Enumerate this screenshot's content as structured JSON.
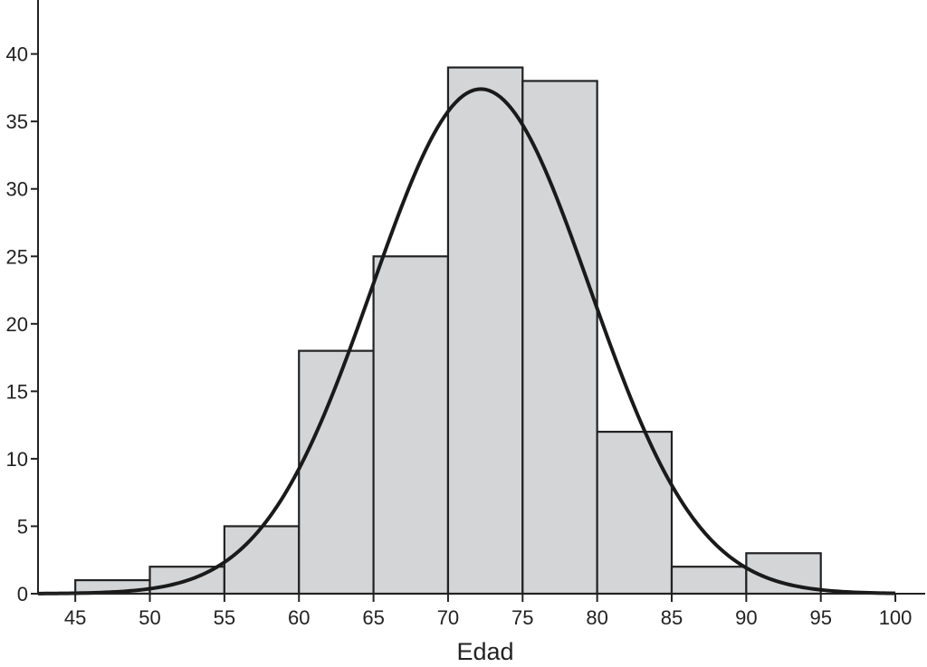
{
  "chart_data": {
    "type": "bar",
    "subtype": "histogram",
    "title": "",
    "xlabel": "Edad",
    "ylabel": "",
    "bins": [
      {
        "start": 45,
        "end": 50,
        "value": 1
      },
      {
        "start": 50,
        "end": 55,
        "value": 2
      },
      {
        "start": 55,
        "end": 60,
        "value": 5
      },
      {
        "start": 60,
        "end": 65,
        "value": 18
      },
      {
        "start": 65,
        "end": 70,
        "value": 25
      },
      {
        "start": 70,
        "end": 75,
        "value": 39
      },
      {
        "start": 75,
        "end": 80,
        "value": 38
      },
      {
        "start": 80,
        "end": 85,
        "value": 12
      },
      {
        "start": 85,
        "end": 90,
        "value": 2
      },
      {
        "start": 90,
        "end": 95,
        "value": 3
      }
    ],
    "xticks": [
      45,
      50,
      55,
      60,
      65,
      70,
      75,
      80,
      85,
      90,
      95,
      100
    ],
    "yticks": [
      0,
      5,
      10,
      15,
      20,
      25,
      30,
      35,
      40
    ],
    "xlim": [
      42.5,
      102
    ],
    "ylim": [
      0,
      44
    ],
    "normal_curve": {
      "mean": 72.2,
      "sd": 7.3,
      "peak": 37.4
    },
    "grid": false,
    "legend": "none",
    "colors": {
      "bar_fill": "#d4d5d7",
      "bar_stroke": "#222222",
      "curve": "#1a1a1a",
      "axis": "#222222"
    }
  }
}
